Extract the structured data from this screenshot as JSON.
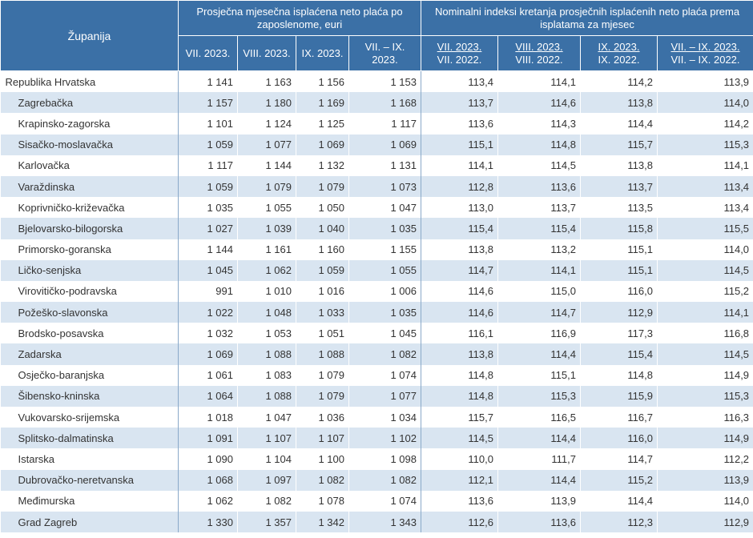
{
  "header": {
    "county_label": "Županija",
    "group_wage": "Prosječna mjesečna isplaćena neto plaća po zaposlenome, euri",
    "group_index": "Nominalni indeksi kretanja prosječnih isplaćenih neto plaća prema isplatama za mjesec",
    "wage_cols": [
      "VII. 2023.",
      "VIII. 2023.",
      "IX. 2023.",
      "VII. – IX. 2023."
    ],
    "index_cols": [
      {
        "top": "VII. 2023.",
        "bottom": "VII. 2022."
      },
      {
        "top": "VIII. 2023.",
        "bottom": "VIII. 2022."
      },
      {
        "top": "IX. 2023.",
        "bottom": "IX. 2022."
      },
      {
        "top": "VII. – IX. 2023.",
        "bottom": "VII. – IX. 2022."
      }
    ]
  },
  "rows": [
    {
      "name": "Republika Hrvatska",
      "values": [
        "1 141",
        "1 163",
        "1 156",
        "1 153",
        "113,4",
        "114,1",
        "114,2",
        "113,9"
      ]
    },
    {
      "name": "Zagrebačka",
      "values": [
        "1 157",
        "1 180",
        "1 169",
        "1 168",
        "113,7",
        "114,6",
        "113,8",
        "114,0"
      ]
    },
    {
      "name": "Krapinsko-zagorska",
      "values": [
        "1 101",
        "1 124",
        "1 125",
        "1 117",
        "113,6",
        "114,3",
        "114,4",
        "114,2"
      ]
    },
    {
      "name": "Sisačko-moslavačka",
      "values": [
        "1 059",
        "1 077",
        "1 069",
        "1 069",
        "115,1",
        "114,8",
        "115,7",
        "115,3"
      ]
    },
    {
      "name": "Karlovačka",
      "values": [
        "1 117",
        "1 144",
        "1 132",
        "1 131",
        "114,1",
        "114,5",
        "113,8",
        "114,1"
      ]
    },
    {
      "name": "Varaždinska",
      "values": [
        "1 059",
        "1 079",
        "1 079",
        "1 073",
        "112,8",
        "113,6",
        "113,7",
        "113,4"
      ]
    },
    {
      "name": "Koprivničko-križevačka",
      "values": [
        "1 035",
        "1 055",
        "1 050",
        "1 047",
        "113,0",
        "113,7",
        "113,5",
        "113,4"
      ]
    },
    {
      "name": "Bjelovarsko-bilogorska",
      "values": [
        "1 027",
        "1 039",
        "1 040",
        "1 035",
        "115,4",
        "115,4",
        "115,8",
        "115,5"
      ]
    },
    {
      "name": "Primorsko-goranska",
      "values": [
        "1 144",
        "1 161",
        "1 160",
        "1 155",
        "113,8",
        "113,2",
        "115,1",
        "114,0"
      ]
    },
    {
      "name": "Ličko-senjska",
      "values": [
        "1 045",
        "1 062",
        "1 059",
        "1 055",
        "114,7",
        "114,1",
        "115,1",
        "114,5"
      ]
    },
    {
      "name": "Virovitičko-podravska",
      "values": [
        "991",
        "1 010",
        "1 016",
        "1 006",
        "114,6",
        "115,0",
        "116,0",
        "115,2"
      ]
    },
    {
      "name": "Požeško-slavonska",
      "values": [
        "1 022",
        "1 048",
        "1 033",
        "1 035",
        "114,6",
        "114,7",
        "112,9",
        "114,1"
      ]
    },
    {
      "name": "Brodsko-posavska",
      "values": [
        "1 032",
        "1 053",
        "1 051",
        "1 045",
        "116,1",
        "116,9",
        "117,3",
        "116,8"
      ]
    },
    {
      "name": "Zadarska",
      "values": [
        "1 069",
        "1 088",
        "1 088",
        "1 082",
        "113,8",
        "114,4",
        "115,4",
        "114,5"
      ]
    },
    {
      "name": "Osječko-baranjska",
      "values": [
        "1 061",
        "1 083",
        "1 079",
        "1 074",
        "114,8",
        "115,1",
        "114,8",
        "114,9"
      ]
    },
    {
      "name": "Šibensko-kninska",
      "values": [
        "1 064",
        "1 088",
        "1 079",
        "1 077",
        "114,8",
        "115,3",
        "115,9",
        "115,3"
      ]
    },
    {
      "name": "Vukovarsko-srijemska",
      "values": [
        "1 018",
        "1 047",
        "1 036",
        "1 034",
        "115,7",
        "116,5",
        "116,7",
        "116,3"
      ]
    },
    {
      "name": "Splitsko-dalmatinska",
      "values": [
        "1 091",
        "1 107",
        "1 107",
        "1 102",
        "114,5",
        "114,4",
        "116,0",
        "114,9"
      ]
    },
    {
      "name": "Istarska",
      "values": [
        "1 090",
        "1 104",
        "1 100",
        "1 098",
        "110,0",
        "111,7",
        "114,7",
        "112,2"
      ]
    },
    {
      "name": "Dubrovačko-neretvanska",
      "values": [
        "1 068",
        "1 097",
        "1 082",
        "1 082",
        "112,1",
        "114,4",
        "115,2",
        "113,9"
      ]
    },
    {
      "name": "Međimurska",
      "values": [
        "1 062",
        "1 082",
        "1 078",
        "1 074",
        "113,6",
        "113,9",
        "114,4",
        "114,0"
      ]
    },
    {
      "name": "Grad Zagreb",
      "values": [
        "1 330",
        "1 357",
        "1 342",
        "1 343",
        "112,6",
        "113,6",
        "112,3",
        "112,9"
      ]
    }
  ]
}
